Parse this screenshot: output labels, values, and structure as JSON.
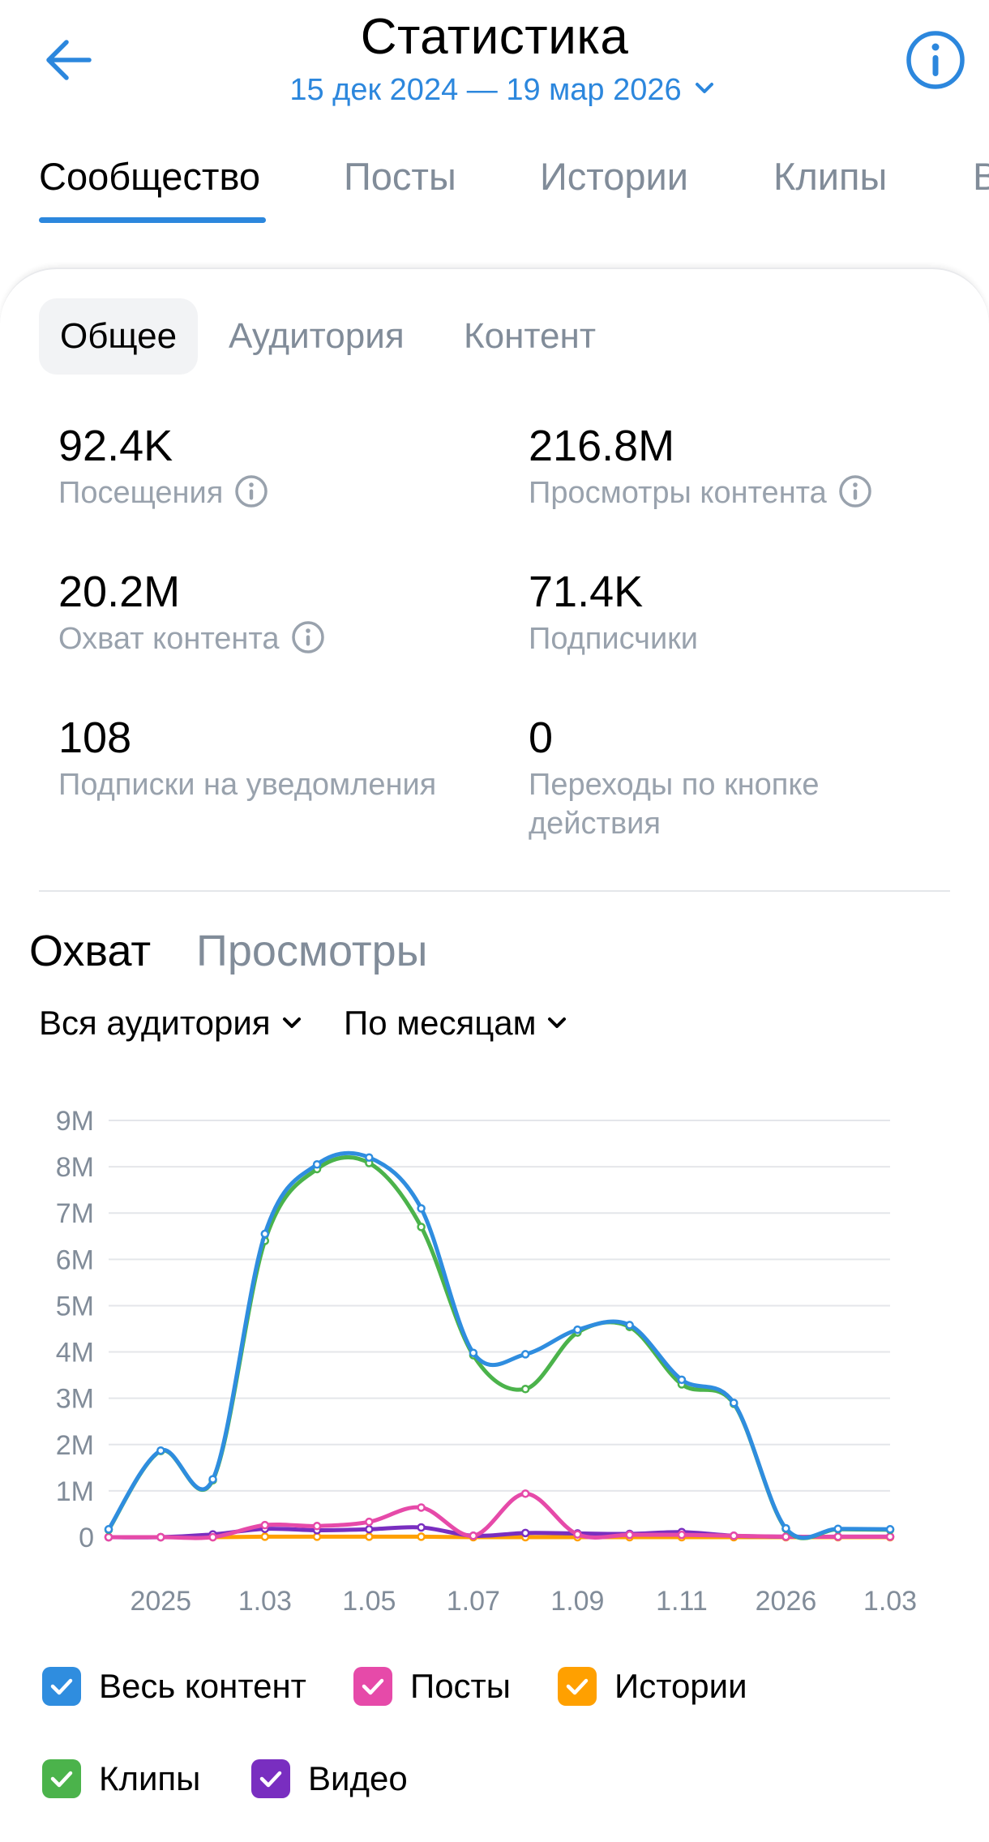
{
  "header": {
    "title": "Статистика",
    "period": "15 дек 2024 — 19 мар 2026"
  },
  "top_tabs": [
    "Сообщество",
    "Посты",
    "Истории",
    "Клипы",
    "В"
  ],
  "sub_tabs": [
    "Общее",
    "Аудитория",
    "Контент"
  ],
  "metrics": [
    {
      "value": "92.4K",
      "label": "Посещения",
      "info": true
    },
    {
      "value": "216.8M",
      "label": "Просмотры контента",
      "info": true
    },
    {
      "value": "20.2M",
      "label": "Охват контента",
      "info": true
    },
    {
      "value": "71.4K",
      "label": "Подписчики",
      "info": false
    },
    {
      "value": "108",
      "label": "Подписки на уведомления",
      "info": false
    },
    {
      "value": "0",
      "label_line1": "Переходы по кнопке",
      "label_line2": "действия",
      "info": false
    }
  ],
  "chart_tabs": [
    "Охват",
    "Просмотры"
  ],
  "filters": {
    "audience": "Вся аудитория",
    "grouping": "По месяцам"
  },
  "colors": {
    "accent": "#2c87dd",
    "all": "#2f8ddf",
    "posts": "#e64aa9",
    "stories": "#ffa000",
    "clips": "#4bb34b",
    "video": "#792ec0"
  },
  "chart_data": {
    "type": "line",
    "ylim": [
      0,
      9000000
    ],
    "y_ticks": [
      "0",
      "1M",
      "2M",
      "3M",
      "4M",
      "5M",
      "6M",
      "7M",
      "8M",
      "9M"
    ],
    "x_tick_labels": [
      "2025",
      "1.03",
      "1.05",
      "1.07",
      "1.09",
      "1.11",
      "2026",
      "1.03"
    ],
    "x": [
      "2024-12",
      "2025-01",
      "2025-02",
      "2025-03",
      "2025-04",
      "2025-05",
      "2025-06",
      "2025-07",
      "2025-08",
      "2025-09",
      "2025-10",
      "2025-11",
      "2025-12",
      "2026-01",
      "2026-02",
      "2026-03"
    ],
    "legend": "bottom",
    "grid": true,
    "series": [
      {
        "name": "Весь контент",
        "color": "#2f8ddf",
        "values": [
          170000,
          1870000,
          1250000,
          6550000,
          8050000,
          8200000,
          7100000,
          3980000,
          3950000,
          4480000,
          4580000,
          3400000,
          2900000,
          190000,
          180000,
          170000
        ]
      },
      {
        "name": "Посты",
        "color": "#e64aa9",
        "values": [
          0,
          0,
          0,
          260000,
          240000,
          330000,
          640000,
          30000,
          940000,
          60000,
          50000,
          50000,
          30000,
          10000,
          10000,
          10000
        ]
      },
      {
        "name": "Истории",
        "color": "#ffa000",
        "values": [
          0,
          0,
          0,
          10000,
          10000,
          10000,
          10000,
          0,
          0,
          0,
          0,
          0,
          0,
          0,
          0,
          0
        ]
      },
      {
        "name": "Клипы",
        "color": "#4bb34b",
        "values": [
          160000,
          1860000,
          1230000,
          6400000,
          7950000,
          8080000,
          6700000,
          3930000,
          3200000,
          4420000,
          4540000,
          3300000,
          2880000,
          180000,
          170000,
          160000
        ]
      },
      {
        "name": "Видео",
        "color": "#792ec0",
        "values": [
          0,
          0,
          60000,
          180000,
          150000,
          170000,
          210000,
          30000,
          90000,
          80000,
          70000,
          110000,
          30000,
          10000,
          10000,
          10000
        ]
      }
    ]
  }
}
